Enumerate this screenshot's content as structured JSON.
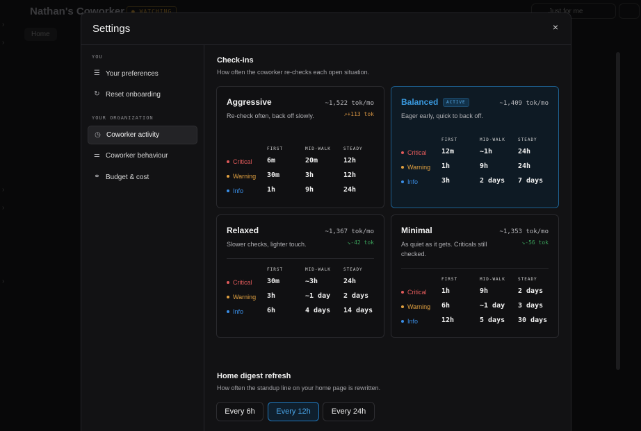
{
  "background": {
    "title": "Nathan's Coworker",
    "badge": "● WATCHING",
    "tab": "Home",
    "filter": "Just for me"
  },
  "modal": {
    "title": "Settings",
    "close": "×"
  },
  "sidebar": {
    "you_label": "YOU",
    "org_label": "YOUR ORGANIZATION",
    "items": [
      {
        "label": "Your preferences",
        "icon": "sliders-icon"
      },
      {
        "label": "Reset onboarding",
        "icon": "reset-icon"
      },
      {
        "label": "Coworker activity",
        "icon": "activity-icon"
      },
      {
        "label": "Coworker behaviour",
        "icon": "behaviour-icon"
      },
      {
        "label": "Budget & cost",
        "icon": "link-icon"
      }
    ]
  },
  "checkins": {
    "title": "Check-ins",
    "subtitle": "How often the coworker re-checks each open situation.",
    "headers": [
      "FIRST",
      "MID-WALK",
      "STEADY"
    ],
    "levels": [
      "Critical",
      "Warning",
      "Info"
    ],
    "level_colors": [
      "#e05a5a",
      "#e0a040",
      "#3a8ee6"
    ],
    "cards": [
      {
        "name": "Aggressive",
        "tok": "~1,522 tok/mo",
        "delta": "↗+113 tok",
        "delta_color": "#d09040",
        "desc": "Re-check often, back off slowly.",
        "rows": [
          [
            "6m",
            "20m",
            "12h"
          ],
          [
            "30m",
            "3h",
            "12h"
          ],
          [
            "1h",
            "9h",
            "24h"
          ]
        ]
      },
      {
        "name": "Balanced",
        "badge": "ACTIVE",
        "tok": "~1,409 tok/mo",
        "delta": "",
        "delta_color": "#8a8a8e",
        "desc": "Eager early, quick to back off.",
        "rows": [
          [
            "12m",
            "~1h",
            "24h"
          ],
          [
            "1h",
            "9h",
            "24h"
          ],
          [
            "3h",
            "2 days",
            "7 days"
          ]
        ]
      },
      {
        "name": "Relaxed",
        "tok": "~1,367 tok/mo",
        "delta": "↘-42 tok",
        "delta_color": "#3aa05a",
        "desc": "Slower checks, lighter touch.",
        "rows": [
          [
            "30m",
            "~3h",
            "24h"
          ],
          [
            "3h",
            "~1 day",
            "2 days"
          ],
          [
            "6h",
            "4 days",
            "14 days"
          ]
        ]
      },
      {
        "name": "Minimal",
        "tok": "~1,353 tok/mo",
        "delta": "↘-56 tok",
        "delta_color": "#3aa05a",
        "desc": "As quiet as it gets. Criticals still checked.",
        "rows": [
          [
            "1h",
            "9h",
            "2 days"
          ],
          [
            "6h",
            "~1 day",
            "3 days"
          ],
          [
            "12h",
            "5 days",
            "30 days"
          ]
        ]
      }
    ]
  },
  "digest": {
    "title": "Home digest refresh",
    "subtitle": "How often the standup line on your home page is rewritten.",
    "options": [
      "Every 6h",
      "Every 12h",
      "Every 24h"
    ],
    "selected": 1
  }
}
